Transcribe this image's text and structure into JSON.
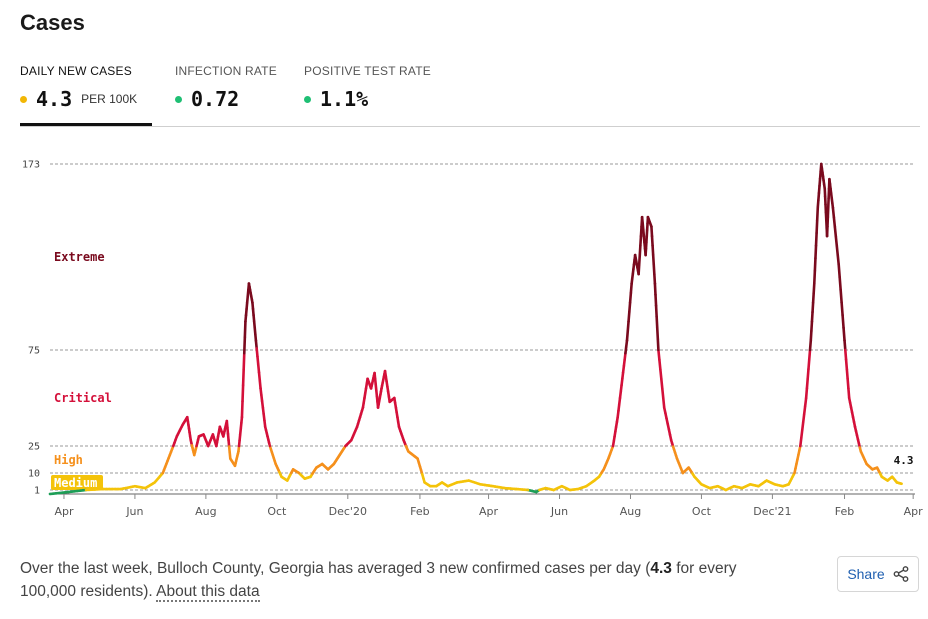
{
  "section_title": "Cases",
  "tabs": [
    {
      "label": "DAILY NEW CASES",
      "value": "4.3",
      "unit": "PER 100K",
      "dot_color": "#f2b705",
      "active": true
    },
    {
      "label": "INFECTION RATE",
      "value": "0.72",
      "unit": "",
      "dot_color": "#1fbf74",
      "active": false
    },
    {
      "label": "POSITIVE TEST RATE",
      "value": "1.1%",
      "unit": "",
      "dot_color": "#1fbf74",
      "active": false
    }
  ],
  "summary": {
    "prefix": "Over the last week, Bulloch County, Georgia has averaged 3 new confirmed cases per day (",
    "highlight": "4.3",
    "suffix": " for every 100,000 residents). ",
    "link": "About this data"
  },
  "share_label": "Share",
  "chart_data": {
    "type": "line",
    "y_ticks": [
      1,
      10,
      25,
      75,
      173
    ],
    "x_ticks": [
      "Apr",
      "Jun",
      "Aug",
      "Oct",
      "Dec'20",
      "Feb",
      "Apr",
      "Jun",
      "Aug",
      "Oct",
      "Dec'21",
      "Feb",
      "Apr"
    ],
    "zones": [
      {
        "name": "Extreme",
        "min": 75,
        "color": "#7a0a1e"
      },
      {
        "name": "Critical",
        "min": 25,
        "color": "#d4103a"
      },
      {
        "name": "High",
        "min": 10,
        "color": "#f5901c"
      },
      {
        "name": "Medium",
        "min": 1,
        "color": "#f4c30a"
      },
      {
        "name": "",
        "min": 0,
        "color": "#1d9e57"
      }
    ],
    "last_value_label": "4.3",
    "series": [
      {
        "points": [
          [
            "2020-03-20",
            0
          ],
          [
            "2020-04-05",
            0.5
          ],
          [
            "2020-04-20",
            1
          ],
          [
            "2020-05-05",
            1.5
          ],
          [
            "2020-05-20",
            1.5
          ],
          [
            "2020-06-01",
            3
          ],
          [
            "2020-06-10",
            2
          ],
          [
            "2020-06-18",
            5
          ],
          [
            "2020-06-25",
            10
          ],
          [
            "2020-07-01",
            20
          ],
          [
            "2020-07-07",
            30
          ],
          [
            "2020-07-12",
            36
          ],
          [
            "2020-07-16",
            40
          ],
          [
            "2020-07-19",
            28
          ],
          [
            "2020-07-22",
            20
          ],
          [
            "2020-07-26",
            30
          ],
          [
            "2020-07-30",
            31
          ],
          [
            "2020-08-03",
            25
          ],
          [
            "2020-08-07",
            31
          ],
          [
            "2020-08-10",
            25
          ],
          [
            "2020-08-13",
            35
          ],
          [
            "2020-08-16",
            30
          ],
          [
            "2020-08-19",
            38
          ],
          [
            "2020-08-22",
            18
          ],
          [
            "2020-08-26",
            14
          ],
          [
            "2020-08-29",
            22
          ],
          [
            "2020-09-01",
            40
          ],
          [
            "2020-09-04",
            90
          ],
          [
            "2020-09-07",
            110
          ],
          [
            "2020-09-10",
            100
          ],
          [
            "2020-09-13",
            80
          ],
          [
            "2020-09-17",
            55
          ],
          [
            "2020-09-21",
            35
          ],
          [
            "2020-09-25",
            25
          ],
          [
            "2020-09-30",
            15
          ],
          [
            "2020-10-05",
            8
          ],
          [
            "2020-10-10",
            6
          ],
          [
            "2020-10-15",
            12
          ],
          [
            "2020-10-20",
            10
          ],
          [
            "2020-10-25",
            7
          ],
          [
            "2020-10-30",
            8
          ],
          [
            "2020-11-04",
            13
          ],
          [
            "2020-11-09",
            15
          ],
          [
            "2020-11-14",
            12
          ],
          [
            "2020-11-19",
            15
          ],
          [
            "2020-11-24",
            20
          ],
          [
            "2020-11-29",
            25
          ],
          [
            "2020-12-04",
            28
          ],
          [
            "2020-12-09",
            35
          ],
          [
            "2020-12-14",
            45
          ],
          [
            "2020-12-18",
            60
          ],
          [
            "2020-12-21",
            55
          ],
          [
            "2020-12-24",
            63
          ],
          [
            "2020-12-27",
            45
          ],
          [
            "2020-12-30",
            55
          ],
          [
            "2021-01-02",
            64
          ],
          [
            "2021-01-06",
            48
          ],
          [
            "2021-01-10",
            50
          ],
          [
            "2021-01-14",
            35
          ],
          [
            "2021-01-18",
            28
          ],
          [
            "2021-01-22",
            22
          ],
          [
            "2021-01-26",
            20
          ],
          [
            "2021-01-30",
            18
          ],
          [
            "2021-02-05",
            5
          ],
          [
            "2021-02-10",
            3
          ],
          [
            "2021-02-15",
            3
          ],
          [
            "2021-02-20",
            5
          ],
          [
            "2021-02-25",
            3
          ],
          [
            "2021-03-05",
            5
          ],
          [
            "2021-03-15",
            6
          ],
          [
            "2021-03-25",
            4
          ],
          [
            "2021-04-05",
            3
          ],
          [
            "2021-04-15",
            2
          ],
          [
            "2021-04-25",
            1.5
          ],
          [
            "2021-05-05",
            1
          ],
          [
            "2021-05-12",
            0.5
          ],
          [
            "2021-05-20",
            2
          ],
          [
            "2021-05-27",
            1
          ],
          [
            "2021-06-03",
            3
          ],
          [
            "2021-06-10",
            1
          ],
          [
            "2021-06-17",
            1.5
          ],
          [
            "2021-06-24",
            3
          ],
          [
            "2021-07-01",
            6
          ],
          [
            "2021-07-05",
            8
          ],
          [
            "2021-07-09",
            12
          ],
          [
            "2021-07-13",
            18
          ],
          [
            "2021-07-17",
            25
          ],
          [
            "2021-07-21",
            40
          ],
          [
            "2021-07-25",
            60
          ],
          [
            "2021-07-29",
            80
          ],
          [
            "2021-08-02",
            110
          ],
          [
            "2021-08-05",
            125
          ],
          [
            "2021-08-08",
            115
          ],
          [
            "2021-08-11",
            145
          ],
          [
            "2021-08-14",
            125
          ],
          [
            "2021-08-16",
            145
          ],
          [
            "2021-08-19",
            140
          ],
          [
            "2021-08-22",
            110
          ],
          [
            "2021-08-25",
            75
          ],
          [
            "2021-08-30",
            45
          ],
          [
            "2021-09-05",
            28
          ],
          [
            "2021-09-10",
            18
          ],
          [
            "2021-09-15",
            10
          ],
          [
            "2021-09-20",
            13
          ],
          [
            "2021-09-25",
            8
          ],
          [
            "2021-10-01",
            4
          ],
          [
            "2021-10-08",
            2
          ],
          [
            "2021-10-15",
            3
          ],
          [
            "2021-10-22",
            1
          ],
          [
            "2021-10-29",
            3
          ],
          [
            "2021-11-05",
            2
          ],
          [
            "2021-11-12",
            4
          ],
          [
            "2021-11-19",
            3
          ],
          [
            "2021-11-26",
            6
          ],
          [
            "2021-12-03",
            4
          ],
          [
            "2021-12-10",
            3
          ],
          [
            "2021-12-15",
            4
          ],
          [
            "2021-12-20",
            10
          ],
          [
            "2021-12-25",
            25
          ],
          [
            "2021-12-30",
            50
          ],
          [
            "2022-01-03",
            80
          ],
          [
            "2022-01-06",
            110
          ],
          [
            "2022-01-09",
            150
          ],
          [
            "2022-01-12",
            173
          ],
          [
            "2022-01-15",
            160
          ],
          [
            "2022-01-17",
            135
          ],
          [
            "2022-01-19",
            165
          ],
          [
            "2022-01-22",
            150
          ],
          [
            "2022-01-27",
            120
          ],
          [
            "2022-02-01",
            80
          ],
          [
            "2022-02-05",
            50
          ],
          [
            "2022-02-10",
            35
          ],
          [
            "2022-02-15",
            22
          ],
          [
            "2022-02-20",
            15
          ],
          [
            "2022-02-25",
            12
          ],
          [
            "2022-03-01",
            13
          ],
          [
            "2022-03-05",
            8
          ],
          [
            "2022-03-10",
            6
          ],
          [
            "2022-03-14",
            8
          ],
          [
            "2022-03-18",
            5
          ],
          [
            "2022-03-22",
            4.3
          ]
        ]
      }
    ]
  }
}
